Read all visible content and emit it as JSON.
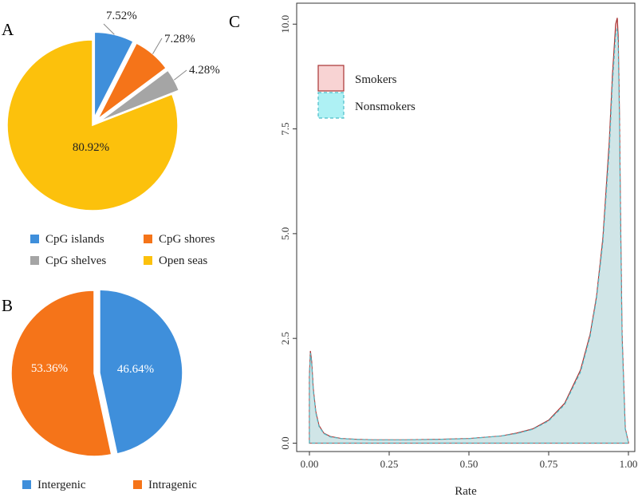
{
  "chart_data": [
    {
      "type": "pie",
      "panel": "A",
      "categories": [
        "CpG islands",
        "CpG shores",
        "CpG shelves",
        "Open seas"
      ],
      "values": [
        7.52,
        7.28,
        4.28,
        80.92
      ],
      "labels": [
        "7.52%",
        "7.28%",
        "4.28%",
        "80.92%"
      ],
      "colors": [
        "#3f8fdb",
        "#f57419",
        "#a5a5a5",
        "#fcc10c"
      ],
      "exploded": [
        true,
        true,
        true,
        false
      ],
      "legend_position": "bottom"
    },
    {
      "type": "pie",
      "panel": "B",
      "categories": [
        "Intergenic",
        "Intragenic"
      ],
      "values": [
        46.64,
        53.36
      ],
      "labels": [
        "46.64%",
        "53.36%"
      ],
      "colors": [
        "#3f8fdb",
        "#f57419"
      ],
      "exploded": [
        true,
        false
      ],
      "legend_position": "bottom"
    },
    {
      "type": "area",
      "panel": "C",
      "xlabel": "Rate",
      "ylabel": "",
      "xlim": [
        -0.04,
        1.02
      ],
      "ylim": [
        -0.2,
        10.5
      ],
      "x_ticks": [
        0,
        0.25,
        0.5,
        0.75,
        1
      ],
      "x_tick_labels": [
        "0.00",
        "0.25",
        "0.50",
        "0.75",
        "1.00"
      ],
      "y_ticks": [
        0,
        2.5,
        5,
        7.5,
        10
      ],
      "y_tick_labels": [
        "0.0",
        "2.5",
        "5.0",
        "7.5",
        "10.0"
      ],
      "legend_position": "top-left",
      "series": [
        {
          "name": "Smokers",
          "fill": "#f8d3d3",
          "stroke": "#a83232",
          "x": [
            0,
            0.003,
            0.007,
            0.012,
            0.02,
            0.03,
            0.045,
            0.065,
            0.1,
            0.15,
            0.2,
            0.3,
            0.4,
            0.5,
            0.6,
            0.65,
            0.7,
            0.75,
            0.8,
            0.85,
            0.88,
            0.9,
            0.92,
            0.94,
            0.95,
            0.96,
            0.965,
            0.968,
            0.972,
            0.975,
            0.98,
            0.99,
            1
          ],
          "y": [
            1.6,
            2.2,
            1.95,
            1.3,
            0.75,
            0.42,
            0.24,
            0.16,
            0.11,
            0.09,
            0.08,
            0.08,
            0.09,
            0.11,
            0.17,
            0.24,
            0.34,
            0.55,
            0.95,
            1.75,
            2.6,
            3.5,
            4.9,
            7.2,
            8.8,
            10.0,
            10.15,
            9.7,
            7.8,
            5.6,
            2.6,
            0.35,
            0.02
          ]
        },
        {
          "name": "Nonsmokers",
          "fill": "#aef1f4",
          "stroke": "#4cbcc8",
          "x": [
            0,
            0.003,
            0.007,
            0.012,
            0.02,
            0.03,
            0.045,
            0.065,
            0.1,
            0.15,
            0.2,
            0.3,
            0.4,
            0.5,
            0.6,
            0.65,
            0.7,
            0.75,
            0.8,
            0.85,
            0.88,
            0.9,
            0.92,
            0.94,
            0.95,
            0.96,
            0.965,
            0.968,
            0.972,
            0.975,
            0.98,
            0.99,
            1
          ],
          "y": [
            1.55,
            2.15,
            1.9,
            1.27,
            0.72,
            0.4,
            0.23,
            0.15,
            0.11,
            0.09,
            0.08,
            0.08,
            0.09,
            0.11,
            0.17,
            0.23,
            0.33,
            0.53,
            0.92,
            1.7,
            2.55,
            3.45,
            4.8,
            7.0,
            8.6,
            9.75,
            9.9,
            9.5,
            7.7,
            5.5,
            2.55,
            0.34,
            0.02
          ]
        }
      ]
    }
  ]
}
